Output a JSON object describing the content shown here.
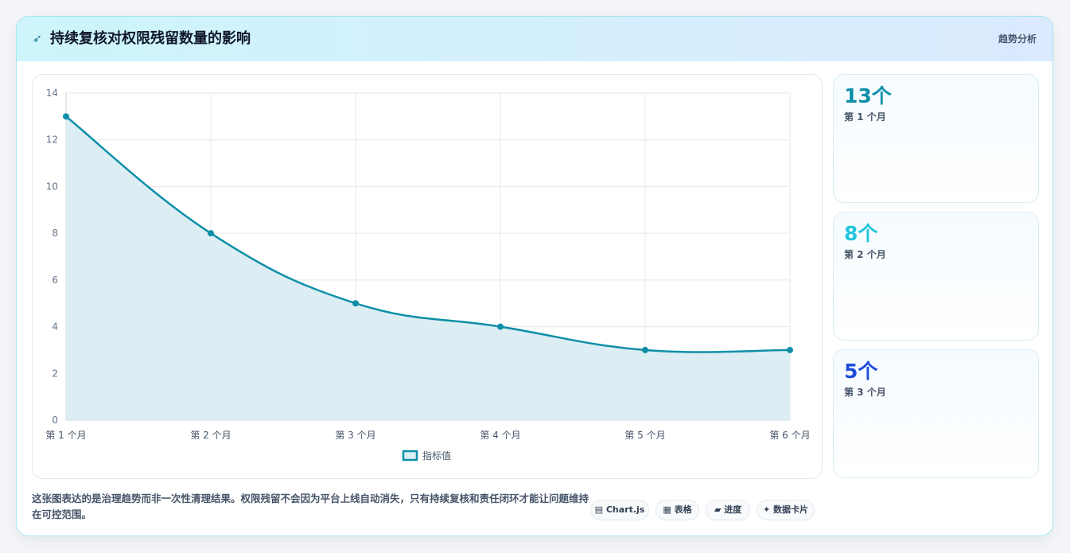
{
  "header": {
    "icon": "sparkle-icon",
    "title": "持续复核对权限残留数量的影响",
    "tag": "趋势分析"
  },
  "chart_data": {
    "type": "area",
    "categories": [
      "第 1 个月",
      "第 2 个月",
      "第 3 个月",
      "第 4 个月",
      "第 5 个月",
      "第 6 个月"
    ],
    "series": [
      {
        "name": "指标值",
        "values": [
          13,
          8,
          5,
          4,
          3,
          3
        ],
        "color": "#0e8fa8",
        "fill": "#dcedf4"
      }
    ],
    "ylim": [
      0,
      14
    ],
    "yticks": [
      "0",
      "2",
      "4",
      "6",
      "8",
      "10",
      "12",
      "14"
    ],
    "grid": true,
    "legend": "bottom"
  },
  "side_cards": [
    {
      "value": "13个",
      "label": "第 1 个月",
      "color": "#0e8fa8"
    },
    {
      "value": "8个",
      "label": "第 2 个月",
      "color": "#22c5dd"
    },
    {
      "value": "5个",
      "label": "第 3 个月",
      "color": "#1d4ed8"
    }
  ],
  "footer": {
    "note": "这张图表达的是治理趋势而非一次性清理结果。权限残留不会因为平台上线自动消失，只有持续复核和责任闭环才能让问题维持在可控范围。",
    "chips": [
      {
        "icon": "bar-chart-icon",
        "label": "▤ Chart.js"
      },
      {
        "icon": "table-icon",
        "label": "▦ 表格"
      },
      {
        "icon": "progress-icon",
        "label": "▰ 进度"
      },
      {
        "icon": "sparkle-icon",
        "label": "✦ 数据卡片"
      }
    ]
  }
}
